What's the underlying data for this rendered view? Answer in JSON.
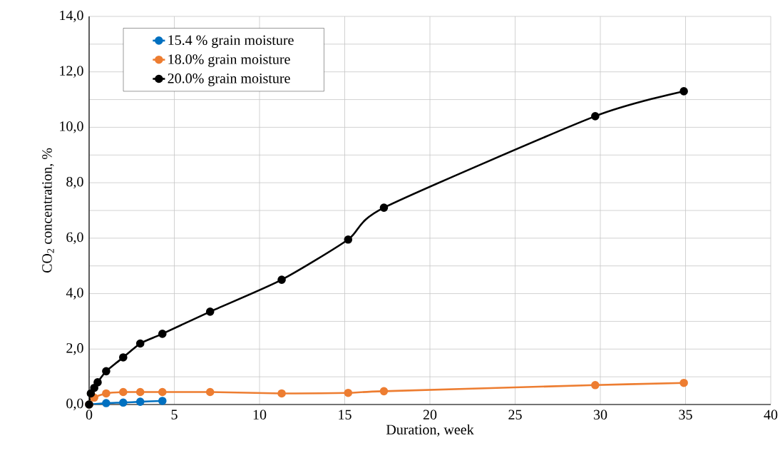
{
  "chart_data": {
    "type": "line",
    "xlabel": "Duration, week",
    "ylabel": "CO$_{2}$ concentration, %",
    "xlim": [
      0,
      40
    ],
    "xticks": [
      0,
      5,
      10,
      15,
      20,
      25,
      30,
      35,
      40
    ],
    "ylim": [
      0,
      14
    ],
    "yticks": [
      {
        "value": 0,
        "label": "0,0"
      },
      {
        "value": 1,
        "label": null
      },
      {
        "value": 2,
        "label": "2,0"
      },
      {
        "value": 3,
        "label": null
      },
      {
        "value": 4,
        "label": "4,0"
      },
      {
        "value": 5,
        "label": null
      },
      {
        "value": 6,
        "label": "6,0"
      },
      {
        "value": 7,
        "label": null
      },
      {
        "value": 8,
        "label": "8,0"
      },
      {
        "value": 9,
        "label": null
      },
      {
        "value": 10,
        "label": "10,0"
      },
      {
        "value": 11,
        "label": null
      },
      {
        "value": 12,
        "label": "12,0"
      },
      {
        "value": 13,
        "label": null
      },
      {
        "value": 14,
        "label": "14,0"
      }
    ],
    "grid": true,
    "legend": "top left",
    "marker": "circle",
    "line_style": "solid",
    "series": [
      {
        "name": "15.4 % grain moisture",
        "color": "#0070c0",
        "x": [
          0,
          1,
          2,
          3,
          4.3
        ],
        "values": [
          0,
          0.05,
          0.07,
          0.1,
          0.13
        ]
      },
      {
        "name": "18.0% grain moisture",
        "color": "#ed7d31",
        "x": [
          0,
          0.3,
          1,
          2,
          3,
          4.3,
          7.1,
          11.3,
          15.2,
          17.3,
          29.7,
          34.9
        ],
        "values": [
          0,
          0.25,
          0.4,
          0.45,
          0.45,
          0.45,
          0.45,
          0.4,
          0.42,
          0.48,
          0.7,
          0.78
        ]
      },
      {
        "name": "20.0% grain moisture",
        "color": "#000000",
        "x": [
          0,
          0.1,
          0.3,
          0.5,
          1,
          2,
          3,
          4.3,
          7.1,
          11.3,
          15.2,
          17.3,
          29.7,
          34.9
        ],
        "values": [
          0,
          0.4,
          0.6,
          0.8,
          1.2,
          1.7,
          2.2,
          2.55,
          3.35,
          4.5,
          5.95,
          7.1,
          10.4,
          11.3
        ]
      }
    ]
  }
}
